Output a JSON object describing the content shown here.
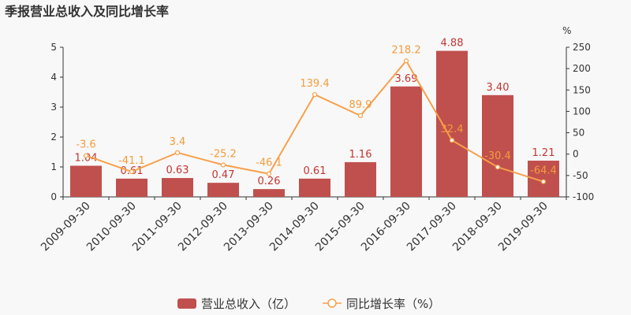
{
  "chart_data": {
    "type": "bar+line",
    "title": "季报营业总收入及同比增长率",
    "categories": [
      "2009-09-30",
      "2010-09-30",
      "2011-09-30",
      "2012-09-30",
      "2013-09-30",
      "2014-09-30",
      "2015-09-30",
      "2016-09-30",
      "2017-09-30",
      "2018-09-30",
      "2019-09-30"
    ],
    "series": [
      {
        "name": "营业总收入（亿）",
        "type": "bar",
        "axis": "left",
        "color": "#c0504d",
        "values": [
          1.04,
          0.61,
          0.63,
          0.47,
          0.26,
          0.61,
          1.16,
          3.69,
          4.88,
          3.4,
          1.21
        ]
      },
      {
        "name": "同比增长率（%）",
        "type": "line",
        "axis": "right",
        "color": "#f7a04b",
        "values": [
          -3.6,
          -41.1,
          3.4,
          -25.2,
          -46.1,
          139.4,
          89.9,
          218.2,
          32.4,
          -30.4,
          -64.4
        ]
      }
    ],
    "left_axis": {
      "ylim": [
        0,
        5
      ],
      "ticks": [
        0,
        1,
        2,
        3,
        4,
        5
      ]
    },
    "right_axis": {
      "label": "%",
      "ylim": [
        -100,
        250
      ],
      "ticks": [
        -100,
        -50,
        0,
        50,
        100,
        150,
        200,
        250
      ]
    },
    "legend": "bottom-center",
    "grid": false
  }
}
